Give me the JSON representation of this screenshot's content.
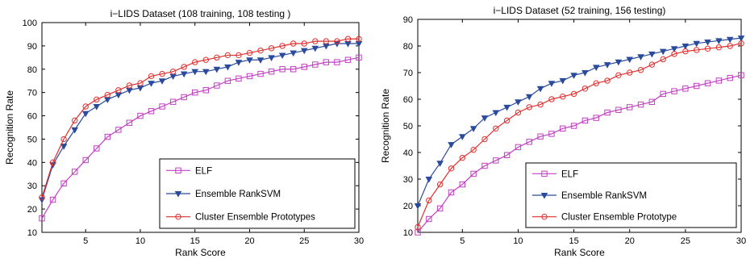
{
  "chart_data": [
    {
      "type": "line",
      "title": "i−LIDS Dataset (108 training, 108 testing )",
      "xlabel": "Rank Score",
      "ylabel": "Recognition Rate",
      "xlim": [
        1,
        30
      ],
      "ylim": [
        10,
        100
      ],
      "xticks": [
        5,
        10,
        15,
        20,
        25,
        30
      ],
      "yticks": [
        10,
        20,
        30,
        40,
        50,
        60,
        70,
        80,
        90,
        100
      ],
      "grid": false,
      "legend_position": "bottom-right",
      "x": [
        1,
        2,
        3,
        4,
        5,
        6,
        7,
        8,
        9,
        10,
        11,
        12,
        13,
        14,
        15,
        16,
        17,
        18,
        19,
        20,
        21,
        22,
        23,
        24,
        25,
        26,
        27,
        28,
        29,
        30
      ],
      "series": [
        {
          "name": "ELF",
          "color": "#c040c0",
          "marker": "square",
          "values": [
            16,
            24,
            31,
            36,
            41,
            46,
            51,
            54,
            57,
            60,
            62,
            64,
            66,
            68,
            70,
            71,
            73,
            75,
            76,
            77,
            78,
            79,
            80,
            80,
            81,
            82,
            83,
            83,
            84,
            85
          ]
        },
        {
          "name": "Ensemble RankSVM",
          "color": "#2a4b9c",
          "marker": "triangle-down",
          "values": [
            24,
            39,
            47,
            54,
            61,
            64,
            67,
            69,
            71,
            72,
            74,
            75,
            77,
            78,
            79,
            79,
            80,
            81,
            83,
            84,
            84,
            85,
            86,
            87,
            88,
            89,
            90,
            91,
            91,
            91
          ]
        },
        {
          "name": "Cluster Ensemble Prototypes",
          "color": "#e03030",
          "marker": "circle",
          "values": [
            25,
            40,
            50,
            58,
            64,
            67,
            69,
            71,
            73,
            74,
            77,
            78,
            79,
            81,
            83,
            84,
            85,
            86,
            86,
            87,
            88,
            89,
            90,
            91,
            91,
            92,
            92,
            92,
            93,
            93
          ]
        }
      ]
    },
    {
      "type": "line",
      "title": "i−LIDS Dataset (52 training, 156 testing)",
      "xlabel": "Rank Score",
      "ylabel": "Recognition Rate",
      "xlim": [
        1,
        30
      ],
      "ylim": [
        10,
        90
      ],
      "xticks": [
        5,
        10,
        15,
        20,
        25,
        30
      ],
      "yticks": [
        10,
        20,
        30,
        40,
        50,
        60,
        70,
        80,
        90
      ],
      "grid": false,
      "legend_position": "bottom-right",
      "x": [
        1,
        2,
        3,
        4,
        5,
        6,
        7,
        8,
        9,
        10,
        11,
        12,
        13,
        14,
        15,
        16,
        17,
        18,
        19,
        20,
        21,
        22,
        23,
        24,
        25,
        26,
        27,
        28,
        29,
        30
      ],
      "series": [
        {
          "name": "ELF",
          "color": "#c040c0",
          "marker": "square",
          "values": [
            10,
            15,
            19,
            25,
            28,
            32,
            35,
            37,
            39,
            42,
            44,
            46,
            47,
            49,
            50,
            52,
            53,
            55,
            56,
            57,
            58,
            59,
            62,
            63,
            64,
            65,
            66,
            67,
            68,
            69
          ]
        },
        {
          "name": "Ensemble RankSVM",
          "color": "#2a4b9c",
          "marker": "triangle-down",
          "values": [
            20,
            30,
            36,
            43,
            46,
            49,
            53,
            55,
            57,
            59,
            61,
            64,
            66,
            67,
            69,
            70,
            72,
            73,
            74,
            75,
            76,
            77,
            78,
            79,
            80,
            81,
            81.5,
            82,
            82.5,
            83
          ]
        },
        {
          "name": "Cluster Ensemble Prototype",
          "color": "#e03030",
          "marker": "circle",
          "values": [
            12,
            22,
            28,
            34,
            38,
            41,
            45,
            49,
            52,
            55,
            57,
            58,
            60,
            61,
            62,
            64,
            66,
            67,
            69,
            70,
            71,
            73,
            75,
            77,
            78,
            78.5,
            79,
            79.5,
            80,
            81
          ]
        }
      ]
    }
  ]
}
